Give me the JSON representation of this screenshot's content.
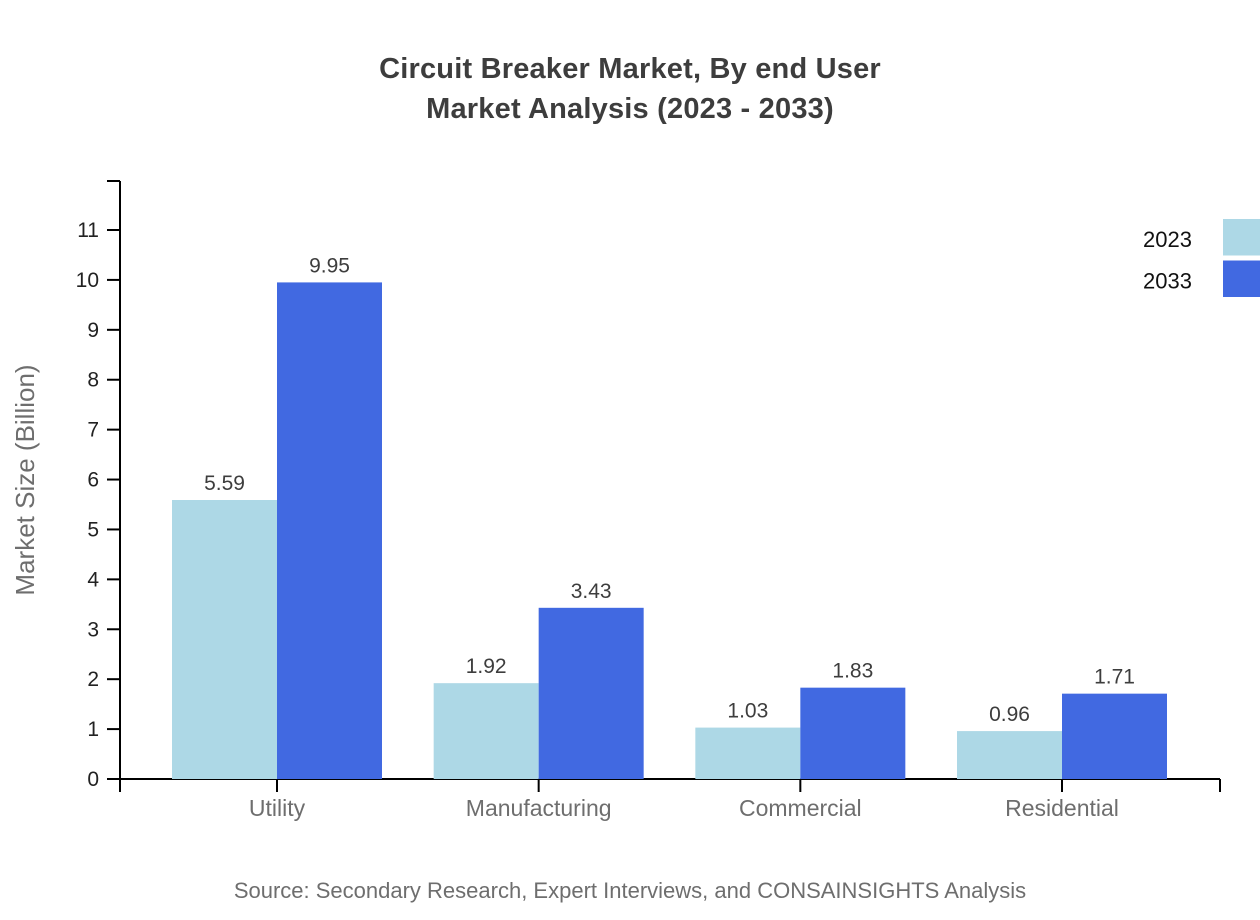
{
  "title": {
    "line1": "Circuit Breaker Market, By end User",
    "line2": "Market Analysis (2023 - 2033)"
  },
  "source": {
    "text": "Source: Secondary Research, Expert Interviews, and CONSAINSIGHTS Analysis"
  },
  "chart_data": {
    "type": "bar",
    "title": "Circuit Breaker Market, By end User Market Analysis (2023 - 2033)",
    "categories": [
      "Utility",
      "Manufacturing",
      "Commercial",
      "Residential"
    ],
    "series": [
      {
        "name": "2023",
        "color": "#ADD8E6",
        "values": [
          5.59,
          1.92,
          1.03,
          0.96
        ]
      },
      {
        "name": "2033",
        "color": "#4169E1",
        "values": [
          9.95,
          3.43,
          1.83,
          1.71
        ]
      }
    ],
    "xlabel": "",
    "ylabel": "Market Size (Billion)",
    "ylim": [
      0,
      11
    ],
    "yticks": [
      0,
      1,
      2,
      3,
      4,
      5,
      6,
      7,
      8,
      9,
      10,
      11
    ],
    "grid": false,
    "value_labels": true,
    "legend_position": "top-right",
    "axis_color": "#000000"
  }
}
